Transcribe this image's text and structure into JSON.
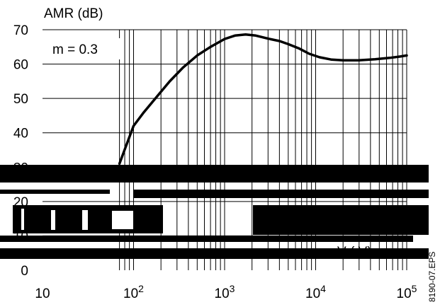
{
  "chart_data": {
    "type": "line",
    "ylabel": "AMR (dB)",
    "xlabel": "V",
    "xlabel_partial": "(  V)",
    "annotation": "m = 0.3",
    "figure_id": "8190-07.EPS",
    "x_scale": "log",
    "xlim": [
      10,
      100000
    ],
    "ylim": [
      0,
      70
    ],
    "y_ticks": [
      "0",
      "10",
      "20",
      "30",
      "40",
      "50",
      "60",
      "70"
    ],
    "x_tick_bases": [
      "10",
      "10",
      "10",
      "10",
      "10"
    ],
    "x_tick_exponents": [
      "",
      "2",
      "3",
      "4",
      "5"
    ],
    "grid": "log-x minor grid, horizontal lines every 10 dB",
    "series": [
      {
        "x": [
          70,
          85,
          100,
          130,
          180,
          250,
          350,
          500,
          700,
          1000,
          1300,
          1700,
          2200,
          3000,
          4000,
          5000,
          6500,
          8500,
          11000,
          15000,
          20000,
          30000,
          45000,
          65000,
          85000,
          100000
        ],
        "y": [
          31,
          37,
          42,
          46,
          50.5,
          55,
          59,
          62.5,
          65,
          67.3,
          68.3,
          68.6,
          68.3,
          67.4,
          66.7,
          65.8,
          64.6,
          63.0,
          62.0,
          61.3,
          61.1,
          61.1,
          61.4,
          61.8,
          62.2,
          62.5
        ]
      }
    ]
  }
}
